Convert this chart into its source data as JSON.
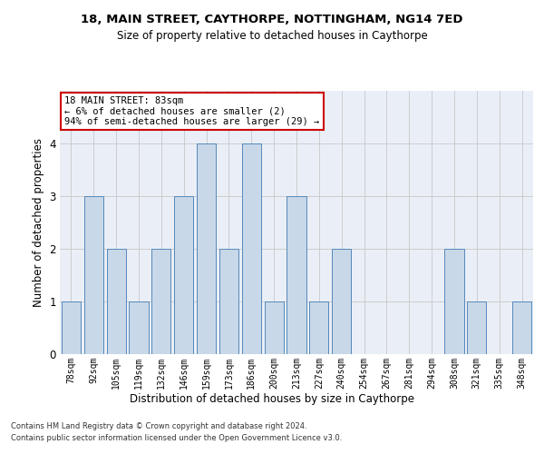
{
  "title1": "18, MAIN STREET, CAYTHORPE, NOTTINGHAM, NG14 7ED",
  "title2": "Size of property relative to detached houses in Caythorpe",
  "xlabel": "Distribution of detached houses by size in Caythorpe",
  "ylabel": "Number of detached properties",
  "bins": [
    "78sqm",
    "92sqm",
    "105sqm",
    "119sqm",
    "132sqm",
    "146sqm",
    "159sqm",
    "173sqm",
    "186sqm",
    "200sqm",
    "213sqm",
    "227sqm",
    "240sqm",
    "254sqm",
    "267sqm",
    "281sqm",
    "294sqm",
    "308sqm",
    "321sqm",
    "335sqm",
    "348sqm"
  ],
  "values": [
    1,
    3,
    2,
    1,
    2,
    3,
    4,
    2,
    4,
    1,
    3,
    1,
    2,
    0,
    0,
    0,
    0,
    2,
    1,
    0,
    1
  ],
  "bar_color": "#c8d8e8",
  "bar_edge_color": "#5588bb",
  "annotation_box_color": "#cc0000",
  "annotation_text": "18 MAIN STREET: 83sqm\n← 6% of detached houses are smaller (2)\n94% of semi-detached houses are larger (29) →",
  "ylim": [
    0,
    5
  ],
  "yticks": [
    0,
    1,
    2,
    3,
    4
  ],
  "grid_color": "#cccccc",
  "bg_color": "#eaeff7",
  "footer1": "Contains HM Land Registry data © Crown copyright and database right 2024.",
  "footer2": "Contains public sector information licensed under the Open Government Licence v3.0."
}
